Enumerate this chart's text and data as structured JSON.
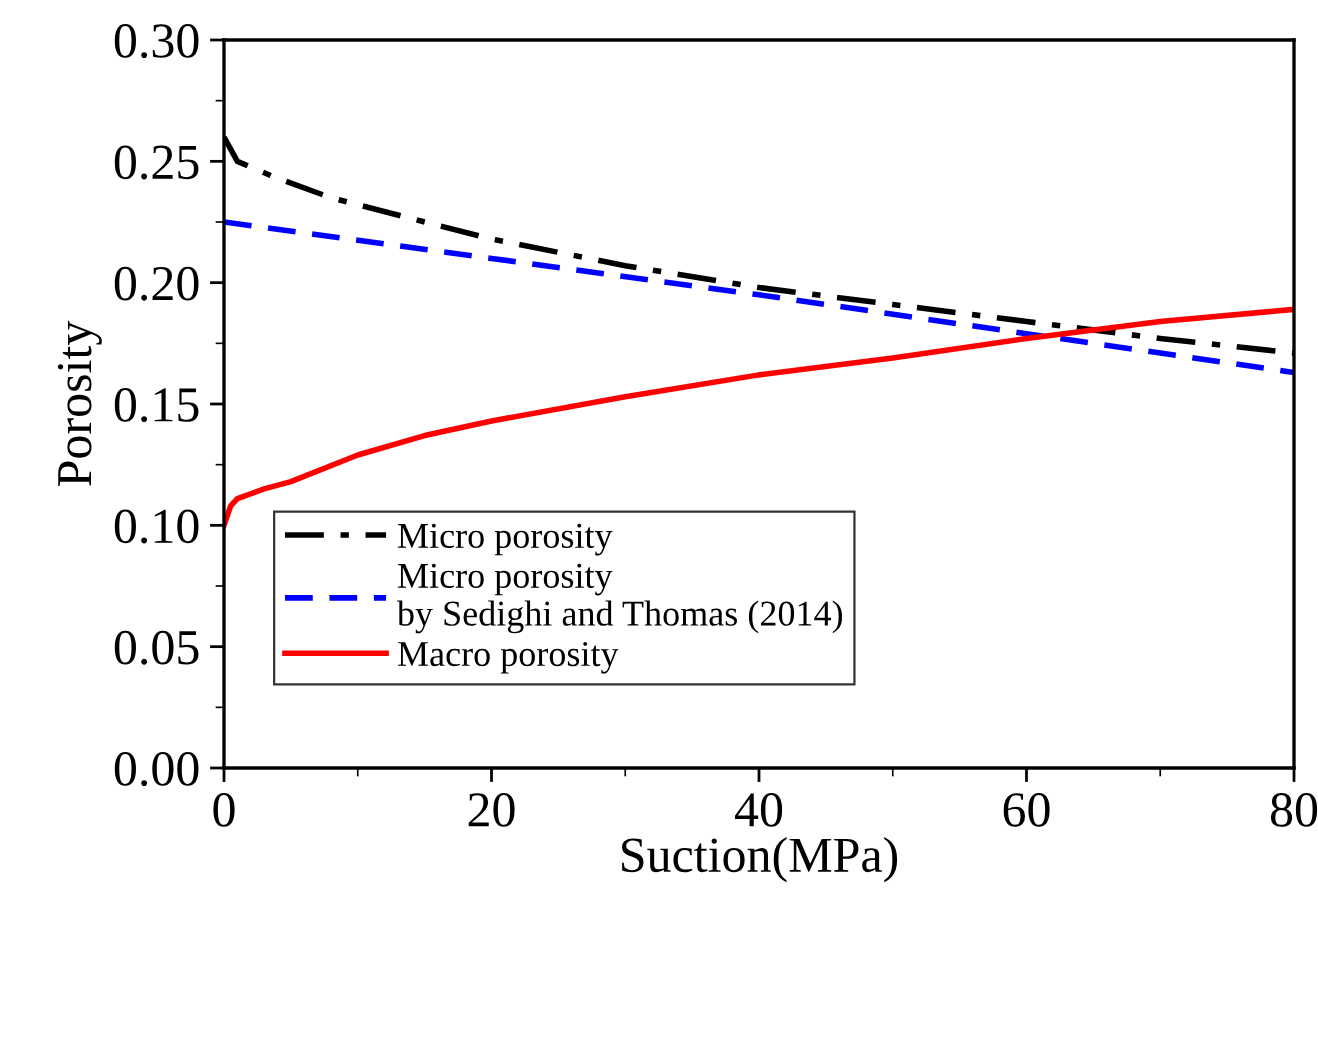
{
  "chart_data": {
    "type": "line",
    "xlabel": "Suction(MPa)",
    "ylabel": "Porosity",
    "xlim": [
      0,
      80
    ],
    "xticks": [
      0,
      20,
      40,
      60,
      80
    ],
    "ylim": [
      0,
      0.3
    ],
    "yticks": [
      {
        "value": 0,
        "label": "0.00"
      },
      {
        "value": 0.05,
        "label": "0.05"
      },
      {
        "value": 0.1,
        "label": "0.10"
      },
      {
        "value": 0.15,
        "label": "0.15"
      },
      {
        "value": 0.2,
        "label": "0.20"
      },
      {
        "value": 0.25,
        "label": "0.25"
      },
      {
        "value": 0.3,
        "label": "0.30"
      }
    ],
    "grid": false,
    "legend": "bottom left",
    "marker": "none",
    "series": [
      {
        "name": "Micro porosity",
        "color": "#000000",
        "line_style": "dashdot",
        "x": [
          0,
          1,
          4,
          8,
          15,
          20,
          30,
          40,
          50,
          60,
          70,
          80
        ],
        "values": [
          0.26,
          0.25,
          0.243,
          0.235,
          0.225,
          0.218,
          0.207,
          0.198,
          0.191,
          0.184,
          0.177,
          0.171
        ]
      },
      {
        "name": "Micro porosity\nby Sedighi and Thomas (2014)",
        "color": "#0000ff",
        "line_style": "dashed",
        "x": [
          0,
          20,
          40,
          60,
          80
        ],
        "values": [
          0.225,
          0.21,
          0.195,
          0.179,
          0.163
        ]
      },
      {
        "name": "Macro porosity",
        "color": "#ff0000",
        "line_style": "solid",
        "x": [
          0,
          0.5,
          1,
          3,
          5,
          10,
          15,
          20,
          30,
          40,
          50,
          60,
          70,
          80
        ],
        "values": [
          0.1,
          0.108,
          0.111,
          0.115,
          0.118,
          0.129,
          0.137,
          0.143,
          0.153,
          0.162,
          0.169,
          0.177,
          0.184,
          0.189
        ]
      }
    ]
  }
}
